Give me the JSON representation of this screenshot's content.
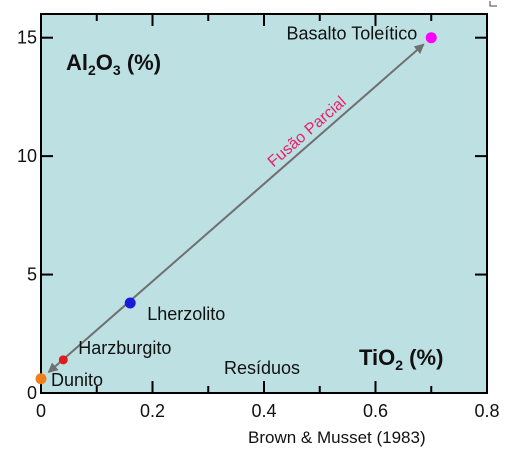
{
  "chart_data": {
    "type": "scatter",
    "title": "",
    "ylabel": {
      "base": "Al",
      "s1": "2",
      "mid": "O",
      "s2": "3",
      "tail": " (%)"
    },
    "xlabel": {
      "base": "TiO",
      "s1": "2",
      "tail": " (%)"
    },
    "xlim": [
      0,
      0.8
    ],
    "ylim": [
      0,
      16
    ],
    "x_ticks": [
      0,
      0.2,
      0.4,
      0.6,
      0.8
    ],
    "x_tick_labels": [
      "0",
      "0.2",
      "0.4",
      "0.6",
      "0.8"
    ],
    "y_ticks": [
      0,
      5,
      10,
      15
    ],
    "y_tick_labels": [
      "0",
      "5",
      "10",
      "15"
    ],
    "points": [
      {
        "label": "Dunito",
        "x": 0.0,
        "y": 0.6,
        "color": "#f07f1a"
      },
      {
        "label": "Harzburgito",
        "x": 0.04,
        "y": 1.4,
        "color": "#e21b1b"
      },
      {
        "label": "Lherzolito",
        "x": 0.16,
        "y": 3.8,
        "color": "#1a1adb"
      },
      {
        "label": "Basalto Toleítico",
        "x": 0.7,
        "y": 15.0,
        "color": "#ff00ff"
      }
    ],
    "trend_arrow": {
      "from": [
        0.0,
        0.6
      ],
      "to": [
        0.7,
        15.0
      ],
      "color": "#707070",
      "both_ends": true
    },
    "annotations": {
      "arrow_label": "Fusão Parcial",
      "residues_label": "Resíduos"
    },
    "credit": "Brown & Musset (1983)",
    "plot_background": "#bde0e3",
    "grid": false
  }
}
